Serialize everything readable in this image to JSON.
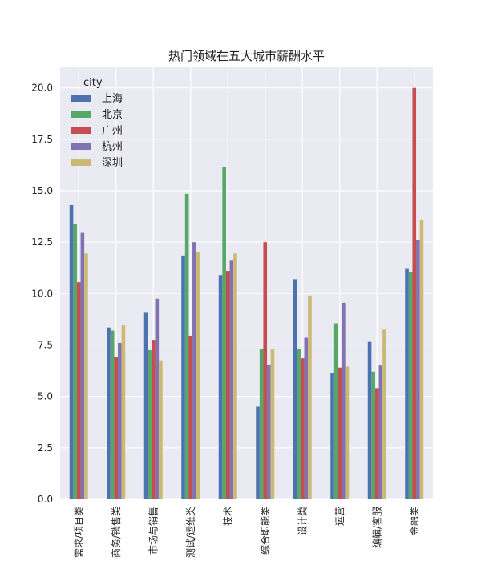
{
  "chart_data": {
    "type": "bar",
    "title": "热门领域在五大城市薪酬水平",
    "xlabel": "",
    "ylabel": "",
    "ylim": [
      0,
      21
    ],
    "yticks": [
      "0.0",
      "2.5",
      "5.0",
      "7.5",
      "10.0",
      "12.5",
      "15.0",
      "17.5",
      "20.0"
    ],
    "grid": true,
    "legend_title": "city",
    "legend_position": "top-left",
    "categories": [
      "需求/项目类",
      "商务/销售类",
      "市场与销售",
      "测试/运维类",
      "技术",
      "综合职能类",
      "设计类",
      "运营",
      "编辑/客服",
      "金融类"
    ],
    "series": [
      {
        "name": "上海",
        "color": "#4c72b0",
        "values": [
          14.3,
          8.35,
          9.1,
          11.85,
          10.9,
          4.5,
          10.7,
          6.15,
          7.65,
          11.2
        ]
      },
      {
        "name": "北京",
        "color": "#55a868",
        "values": [
          13.4,
          8.2,
          7.25,
          14.85,
          16.15,
          7.3,
          7.3,
          8.55,
          6.2,
          11.05
        ]
      },
      {
        "name": "广州",
        "color": "#c44e52",
        "values": [
          10.55,
          6.9,
          7.75,
          7.95,
          11.1,
          12.5,
          6.85,
          6.4,
          5.4,
          20.0
        ]
      },
      {
        "name": "杭州",
        "color": "#8172b2",
        "values": [
          12.95,
          7.6,
          9.75,
          12.5,
          11.6,
          6.55,
          7.85,
          9.55,
          6.5,
          12.6
        ]
      },
      {
        "name": "深圳",
        "color": "#ccb974",
        "values": [
          11.95,
          8.45,
          6.75,
          12.0,
          11.95,
          7.3,
          9.9,
          6.45,
          8.25,
          13.6
        ]
      }
    ]
  }
}
